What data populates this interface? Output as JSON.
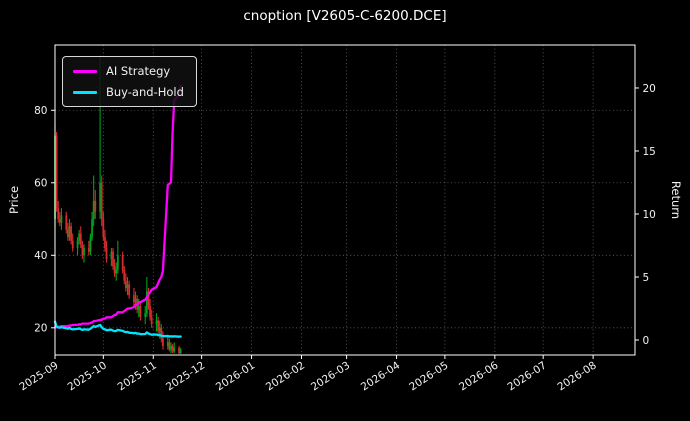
{
  "title": "cnoption [V2605-C-6200.DCE]",
  "chart_data": {
    "type": "candlestick+line",
    "title": "cnoption [V2605-C-6200.DCE]",
    "xlabel": "",
    "ylabel_left": "Price",
    "ylabel_right": "Return",
    "legend_position": "upper left",
    "grid": "dotted",
    "x_tick_labels": [
      "2025-09",
      "2025-10",
      "2025-11",
      "2025-12",
      "2026-01",
      "2026-02",
      "2026-03",
      "2026-04",
      "2026-05",
      "2026-06",
      "2026-07",
      "2026-08"
    ],
    "price_ticks": [
      20,
      40,
      60,
      80
    ],
    "return_ticks": [
      0,
      5,
      10,
      15,
      20
    ],
    "price_range": [
      12.5,
      98
    ],
    "return_range": [
      -1.19,
      23.41
    ],
    "x_range_days": [
      "2025-09-01",
      "2026-08-27"
    ],
    "colors": {
      "up": "#00a020",
      "down": "#d62c2c",
      "strategy": "#ff00ff",
      "buy_and_hold": "#00e5ff",
      "grid": "#7c7c7c",
      "background": "#000000",
      "text": "#f2f2f2"
    },
    "dates": [
      "2025-09-01",
      "2025-09-02",
      "2025-09-03",
      "2025-09-04",
      "2025-09-05",
      "2025-09-08",
      "2025-09-09",
      "2025-09-10",
      "2025-09-11",
      "2025-09-12",
      "2025-09-15",
      "2025-09-16",
      "2025-09-17",
      "2025-09-18",
      "2025-09-19",
      "2025-09-22",
      "2025-09-23",
      "2025-09-24",
      "2025-09-25",
      "2025-09-26",
      "2025-09-29",
      "2025-09-30",
      "2025-10-01",
      "2025-10-02",
      "2025-10-03",
      "2025-10-06",
      "2025-10-07",
      "2025-10-08",
      "2025-10-09",
      "2025-10-10",
      "2025-10-13",
      "2025-10-14",
      "2025-10-15",
      "2025-10-16",
      "2025-10-17",
      "2025-10-20",
      "2025-10-21",
      "2025-10-22",
      "2025-10-23",
      "2025-10-24",
      "2025-10-27",
      "2025-10-28",
      "2025-10-29",
      "2025-10-30",
      "2025-10-31",
      "2025-11-03",
      "2025-11-04",
      "2025-11-05",
      "2025-11-06",
      "2025-11-07",
      "2025-11-10",
      "2025-11-11",
      "2025-11-12",
      "2025-11-13",
      "2025-11-14",
      "2025-11-17",
      "2025-11-18"
    ],
    "ohlc": [
      [
        50,
        76,
        48,
        73
      ],
      [
        73,
        74,
        52,
        53
      ],
      [
        53,
        55,
        49,
        50
      ],
      [
        50,
        52,
        48,
        49
      ],
      [
        49,
        53,
        47,
        51
      ],
      [
        51,
        52,
        46,
        47
      ],
      [
        47,
        49,
        44,
        45
      ],
      [
        45,
        50,
        44,
        48
      ],
      [
        48,
        49,
        43,
        44
      ],
      [
        44,
        46,
        41,
        42
      ],
      [
        42,
        45,
        40,
        44
      ],
      [
        44,
        47,
        43,
        46
      ],
      [
        46,
        48,
        42,
        43
      ],
      [
        43,
        44,
        39,
        40
      ],
      [
        40,
        43,
        38,
        42
      ],
      [
        42,
        44,
        40,
        41
      ],
      [
        41,
        46,
        40,
        45
      ],
      [
        45,
        52,
        44,
        50
      ],
      [
        50,
        62,
        48,
        55
      ],
      [
        55,
        58,
        50,
        52
      ],
      [
        52,
        95,
        50,
        60
      ],
      [
        60,
        62,
        48,
        50
      ],
      [
        50,
        52,
        44,
        45
      ],
      [
        45,
        47,
        41,
        42
      ],
      [
        42,
        44,
        38,
        39
      ],
      [
        39,
        42,
        37,
        41
      ],
      [
        41,
        42,
        36,
        37
      ],
      [
        37,
        39,
        34,
        35
      ],
      [
        35,
        38,
        33,
        36
      ],
      [
        36,
        44,
        35,
        40
      ],
      [
        40,
        41,
        35,
        36
      ],
      [
        36,
        37,
        32,
        33
      ],
      [
        33,
        35,
        30,
        31
      ],
      [
        31,
        34,
        29,
        32
      ],
      [
        32,
        33,
        28,
        29
      ],
      [
        29,
        31,
        26,
        27
      ],
      [
        27,
        30,
        25,
        28
      ],
      [
        28,
        29,
        24,
        25
      ],
      [
        25,
        28,
        23,
        26
      ],
      [
        26,
        27,
        22,
        23
      ],
      [
        23,
        26,
        21,
        24
      ],
      [
        24,
        34,
        23,
        30
      ],
      [
        30,
        31,
        25,
        26
      ],
      [
        26,
        28,
        22,
        23
      ],
      [
        23,
        25,
        20,
        21
      ],
      [
        21,
        24,
        19,
        22
      ],
      [
        22,
        23,
        18,
        19
      ],
      [
        19,
        22,
        17,
        20
      ],
      [
        20,
        21,
        16,
        17
      ],
      [
        17,
        19,
        14,
        15
      ],
      [
        15,
        18,
        14,
        16
      ],
      [
        16,
        17,
        13.5,
        14
      ],
      [
        14,
        16,
        13,
        15
      ],
      [
        15,
        15.5,
        13,
        13.5
      ],
      [
        13.5,
        16,
        13,
        14.5
      ],
      [
        14.5,
        15,
        12.8,
        13
      ],
      [
        13,
        14.5,
        12.8,
        14
      ]
    ],
    "series": [
      {
        "name": "AI Strategy",
        "axis": "return",
        "color_key": "strategy",
        "values": [
          1.0,
          1.0,
          1.05,
          1.05,
          1.1,
          1.1,
          1.1,
          1.15,
          1.15,
          1.2,
          1.2,
          1.25,
          1.25,
          1.3,
          1.3,
          1.3,
          1.35,
          1.4,
          1.5,
          1.5,
          1.6,
          1.6,
          1.7,
          1.7,
          1.8,
          1.8,
          1.9,
          2.0,
          2.0,
          2.2,
          2.2,
          2.3,
          2.4,
          2.5,
          2.5,
          2.6,
          2.8,
          2.8,
          3.0,
          3.0,
          3.2,
          3.4,
          3.6,
          3.8,
          4.0,
          4.2,
          4.5,
          4.8,
          5.0,
          5.5,
          12.3,
          12.4,
          12.5,
          16.5,
          19.0,
          19.5,
          20.2
        ]
      },
      {
        "name": "Buy-and-Hold",
        "axis": "return",
        "color_key": "buy_and_hold",
        "values": [
          1.46,
          1.06,
          1.0,
          0.98,
          1.02,
          0.94,
          0.9,
          0.96,
          0.88,
          0.84,
          0.88,
          0.92,
          0.86,
          0.8,
          0.84,
          0.82,
          0.9,
          1.0,
          1.1,
          1.04,
          1.2,
          1.0,
          0.9,
          0.84,
          0.78,
          0.82,
          0.74,
          0.7,
          0.72,
          0.8,
          0.72,
          0.66,
          0.62,
          0.64,
          0.58,
          0.54,
          0.56,
          0.5,
          0.52,
          0.46,
          0.48,
          0.6,
          0.52,
          0.46,
          0.42,
          0.44,
          0.38,
          0.4,
          0.34,
          0.3,
          0.32,
          0.28,
          0.3,
          0.27,
          0.29,
          0.26,
          0.28
        ]
      }
    ]
  }
}
